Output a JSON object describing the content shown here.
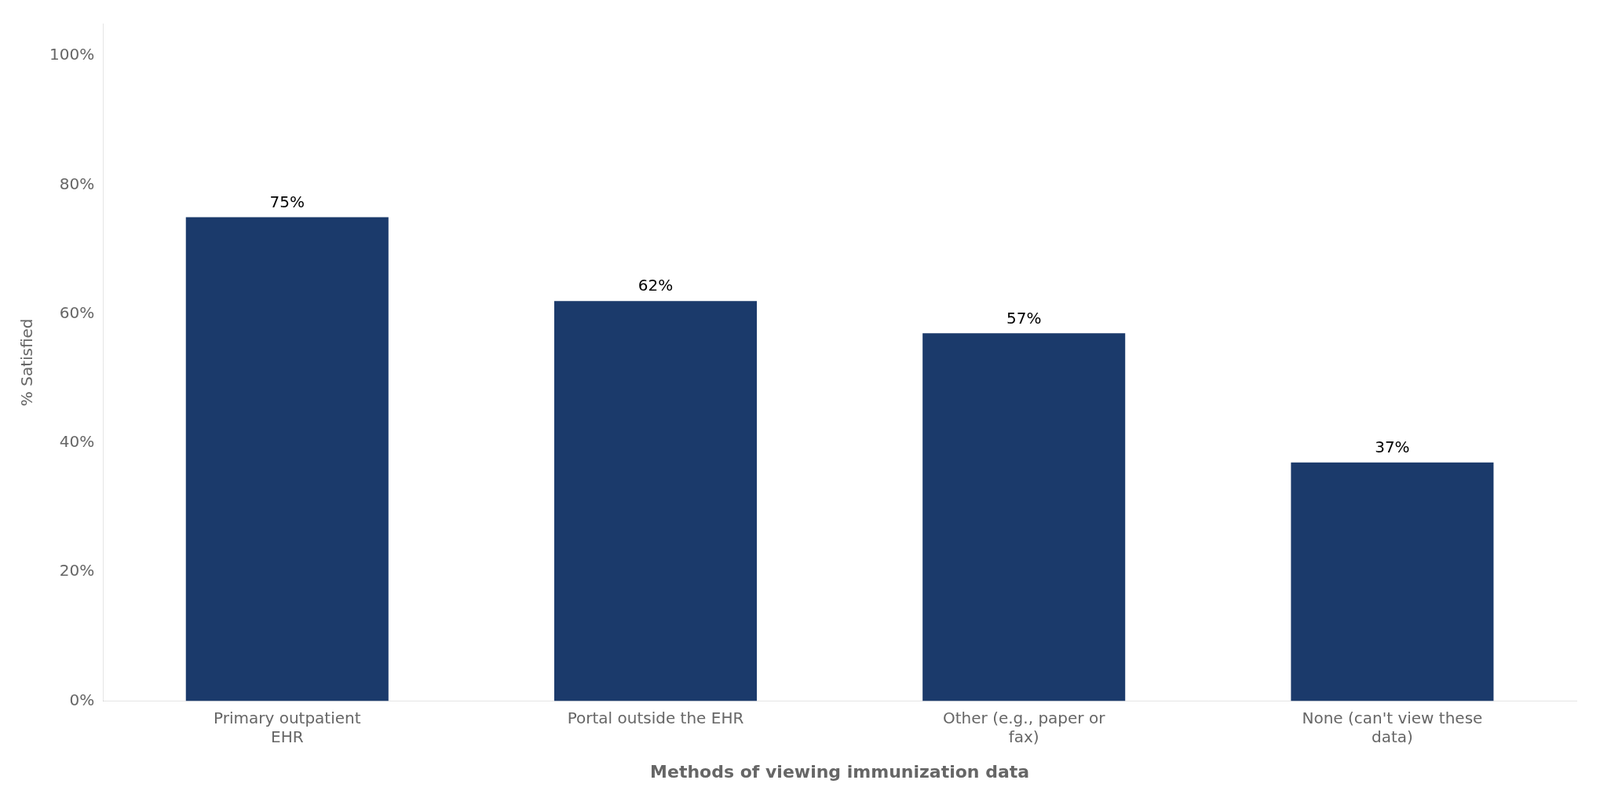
{
  "chart_data": {
    "type": "bar",
    "categories": [
      "Primary outpatient\nEHR",
      "Portal outside the EHR",
      "Other (e.g., paper or\nfax)",
      "None (can't view these\ndata)"
    ],
    "values": [
      75,
      62,
      57,
      37
    ],
    "value_labels": [
      "75%",
      "62%",
      "57%",
      "37%"
    ],
    "data_labels": true,
    "color": "#1b3a6b",
    "xlabel": "Methods of viewing immunization data",
    "ylabel": "% Satisfied",
    "ylim": [
      0,
      105
    ],
    "yticks": [
      {
        "value": 0,
        "label": "0%"
      },
      {
        "value": 20,
        "label": "20%"
      },
      {
        "value": 40,
        "label": "40%"
      },
      {
        "value": 60,
        "label": "60%"
      },
      {
        "value": 80,
        "label": "80%"
      },
      {
        "value": 100,
        "label": "100%"
      }
    ],
    "grid": false
  }
}
